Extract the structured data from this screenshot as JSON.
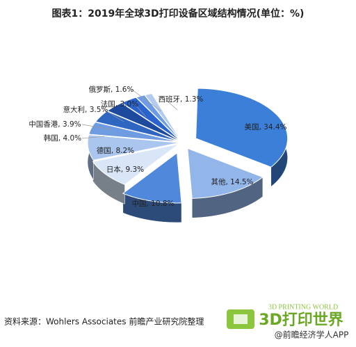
{
  "chart_data": {
    "type": "pie",
    "title": "图表1：2019年全球3D打印设备区域结构情况(单位：%)",
    "values": [
      34.4,
      14.5,
      10.8,
      9.3,
      8.2,
      4.0,
      3.9,
      3.5,
      3.0,
      1.6,
      1.3
    ],
    "value_labels": [
      "美国, 34.4%",
      "其他, 14.5%",
      "中国, 10.8%",
      "日本, 9.3%",
      "德国, 8.2%",
      "韩国, 4.0%",
      "中国香港, 3.9%",
      "意大利, 3.5%",
      "法国, 3.0%",
      "俄罗斯, 1.6%",
      "西班牙, 1.3%"
    ],
    "colors": [
      "#3c7fd9",
      "#93b6ea",
      "#5089dc",
      "#d9e6f8",
      "#aac6ee",
      "#6f9be0",
      "#2f66c2",
      "#1d4a9c",
      "#2b63cc",
      "#6d9ce4",
      "#b3cbef"
    ],
    "source": "资料来源：Wohlers Associates 前瞻产业研究院整理"
  },
  "logo": {
    "top": "3D PRINTING WORLD",
    "main": "3D打印世界",
    "handle": "@前瞻经济学人APP"
  }
}
